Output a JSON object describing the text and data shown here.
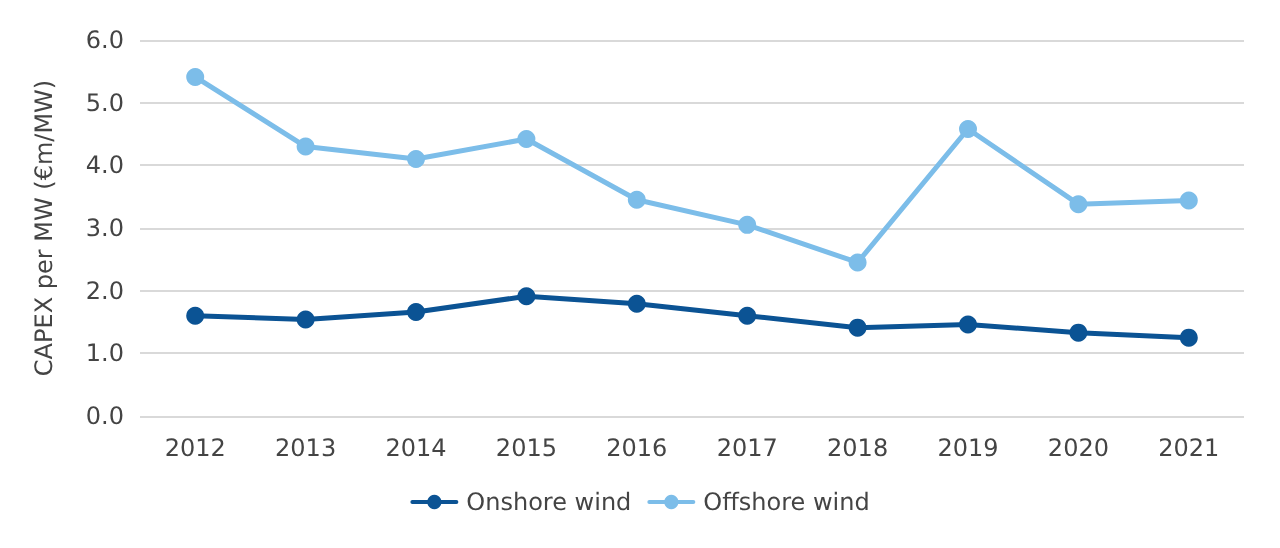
{
  "chart_data": {
    "type": "line",
    "ylabel": "CAPEX per MW (€m/MW)",
    "categories": [
      "2012",
      "2013",
      "2014",
      "2015",
      "2016",
      "2017",
      "2018",
      "2019",
      "2020",
      "2021"
    ],
    "series": [
      {
        "name": "Onshore wind",
        "color": "#0b5394",
        "values": [
          1.6,
          1.54,
          1.66,
          1.91,
          1.79,
          1.6,
          1.41,
          1.46,
          1.33,
          1.25
        ]
      },
      {
        "name": "Offshore wind",
        "color": "#7cbde9",
        "values": [
          5.41,
          4.3,
          4.1,
          4.42,
          3.45,
          3.05,
          2.45,
          4.58,
          3.38,
          3.44
        ]
      }
    ],
    "ylim": [
      0,
      6
    ],
    "yticks": [
      {
        "value": 0,
        "label": "0.0"
      },
      {
        "value": 1,
        "label": "1.0"
      },
      {
        "value": 2,
        "label": "2.0"
      },
      {
        "value": 3,
        "label": "3.0"
      },
      {
        "value": 4,
        "label": "4.0"
      },
      {
        "value": 5,
        "label": "5.0"
      },
      {
        "value": 6,
        "label": "6.0"
      }
    ],
    "grid": "y",
    "legend": "bottom",
    "marker": "circle",
    "line_style": "solid"
  }
}
